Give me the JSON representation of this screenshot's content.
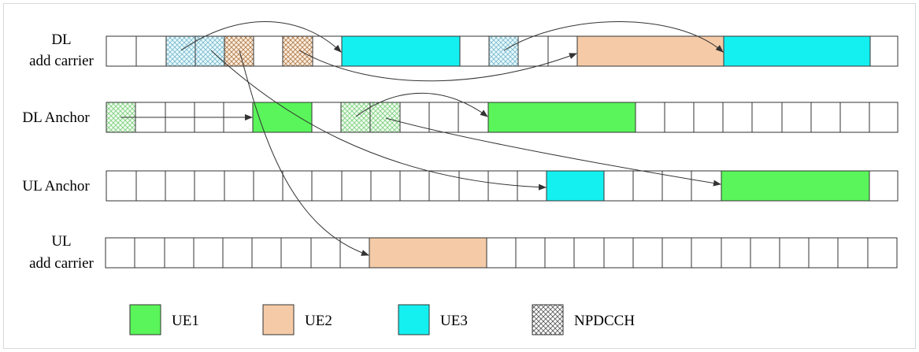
{
  "rows": [
    {
      "id": "dl-add-carrier",
      "label_lines": [
        "DL",
        "add carrier"
      ]
    },
    {
      "id": "dl-anchor",
      "label_lines": [
        "DL Anchor"
      ]
    },
    {
      "id": "ul-anchor",
      "label_lines": [
        "UL Anchor"
      ]
    },
    {
      "id": "ul-add-carrier",
      "label_lines": [
        "UL",
        "add carrier"
      ]
    }
  ],
  "legend": [
    {
      "id": "ue1",
      "label": "UE1",
      "color": "#5af55a",
      "pattern": false
    },
    {
      "id": "ue2",
      "label": "UE2",
      "color": "#f5cba7",
      "pattern": false
    },
    {
      "id": "ue3",
      "label": "UE3",
      "color": "#14f0f0",
      "pattern": false
    },
    {
      "id": "npdcch",
      "label": "NPDCCH",
      "color": "#555555",
      "pattern": true
    }
  ],
  "colors": {
    "ue1": "#5af55a",
    "ue2": "#f5cba7",
    "ue3": "#14f0f0",
    "ue1_hatch": "#7ccf7c",
    "ue2_hatch": "#b07a48",
    "ue3_hatch": "#7ab8cc",
    "cell_border": "#333333",
    "arrow": "#333333"
  }
}
